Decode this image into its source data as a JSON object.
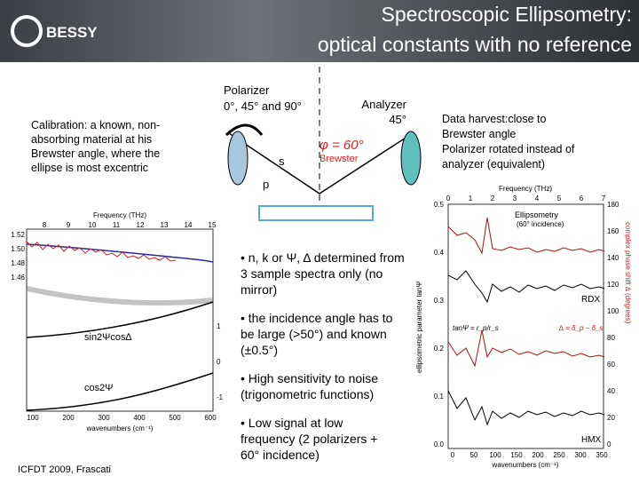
{
  "header": {
    "logo": "BESSY",
    "title_line1": "Spectroscopic Ellipsometry:",
    "title_line2": "optical constants with no reference"
  },
  "calibration": [
    "Calibration: a known, non-",
    "absorbing material at his",
    "Brewster angle, where the",
    "ellipse is most excentric"
  ],
  "diagram": {
    "polarizer": [
      "Polarizer",
      "0°, 45° and 90°"
    ],
    "analyzer": [
      "Analyzer",
      "45°"
    ],
    "angle": "φ = 60°",
    "brewster": "Brewster",
    "s": "s",
    "p": "p"
  },
  "harvest": [
    "Data harvest:close to",
    "Brewster angle",
    "Polarizer rotated instead of",
    "analyzer (equivalent)"
  ],
  "bullets": [
    [
      "• n, k or Ψ, Δ determined from",
      "3 sample spectra only (no",
      "mirror)"
    ],
    [
      "• the incidence angle has to",
      "be large (>50°) and known",
      "(±0.5°)"
    ],
    [
      "• High sensitivity to noise",
      "(trigonometric functions)"
    ],
    [
      "• Low signal at low",
      "frequency     (2 polarizers +",
      "60° incidence)"
    ]
  ],
  "plot_left": {
    "top_title": "Frequency (THz)",
    "top_ticks": [
      "8",
      "9",
      "10",
      "11",
      "12",
      "13",
      "14",
      "15"
    ],
    "y_ticks": [
      "1.52",
      "1.50",
      "1.48",
      "1.46"
    ],
    "right_ticks": [
      "1",
      "0",
      "-1"
    ],
    "x_ticks": [
      "100",
      "200",
      "300",
      "400",
      "500",
      "600"
    ],
    "x_label": "wavenumbers (cm⁻¹)",
    "label1": "sin2Ψcos∆",
    "label2": "cos2Ψ"
  },
  "plot_right": {
    "top_title": "Frequency (THz)",
    "top_ticks": [
      "0",
      "1",
      "2",
      "3",
      "4",
      "5",
      "6",
      "7"
    ],
    "y_ticks": [
      "0.5",
      "0.4",
      "0.3",
      "0.2",
      "0.1",
      "0.0"
    ],
    "right_ticks": [
      "180",
      "160",
      "140",
      "120",
      "100",
      "80",
      "60",
      "40",
      "20",
      "0"
    ],
    "x_ticks": [
      "0",
      "50",
      "100",
      "150",
      "200",
      "250",
      "300",
      "350"
    ],
    "x_label": "wavenumbers (cm⁻¹)",
    "title": [
      "Ellipsometry",
      "(60° incidence)"
    ],
    "y_label": "ellipsometric parameter tanΨ",
    "y2_label": "complex phase shift ∆ (degrees)",
    "formula1": "tanΨ = r_p/r_s",
    "formula2": "∆ = δ_p − δ_s",
    "sample1": "RDX",
    "sample2": "HMX"
  },
  "footer": "ICFDT 2009, Frascati"
}
